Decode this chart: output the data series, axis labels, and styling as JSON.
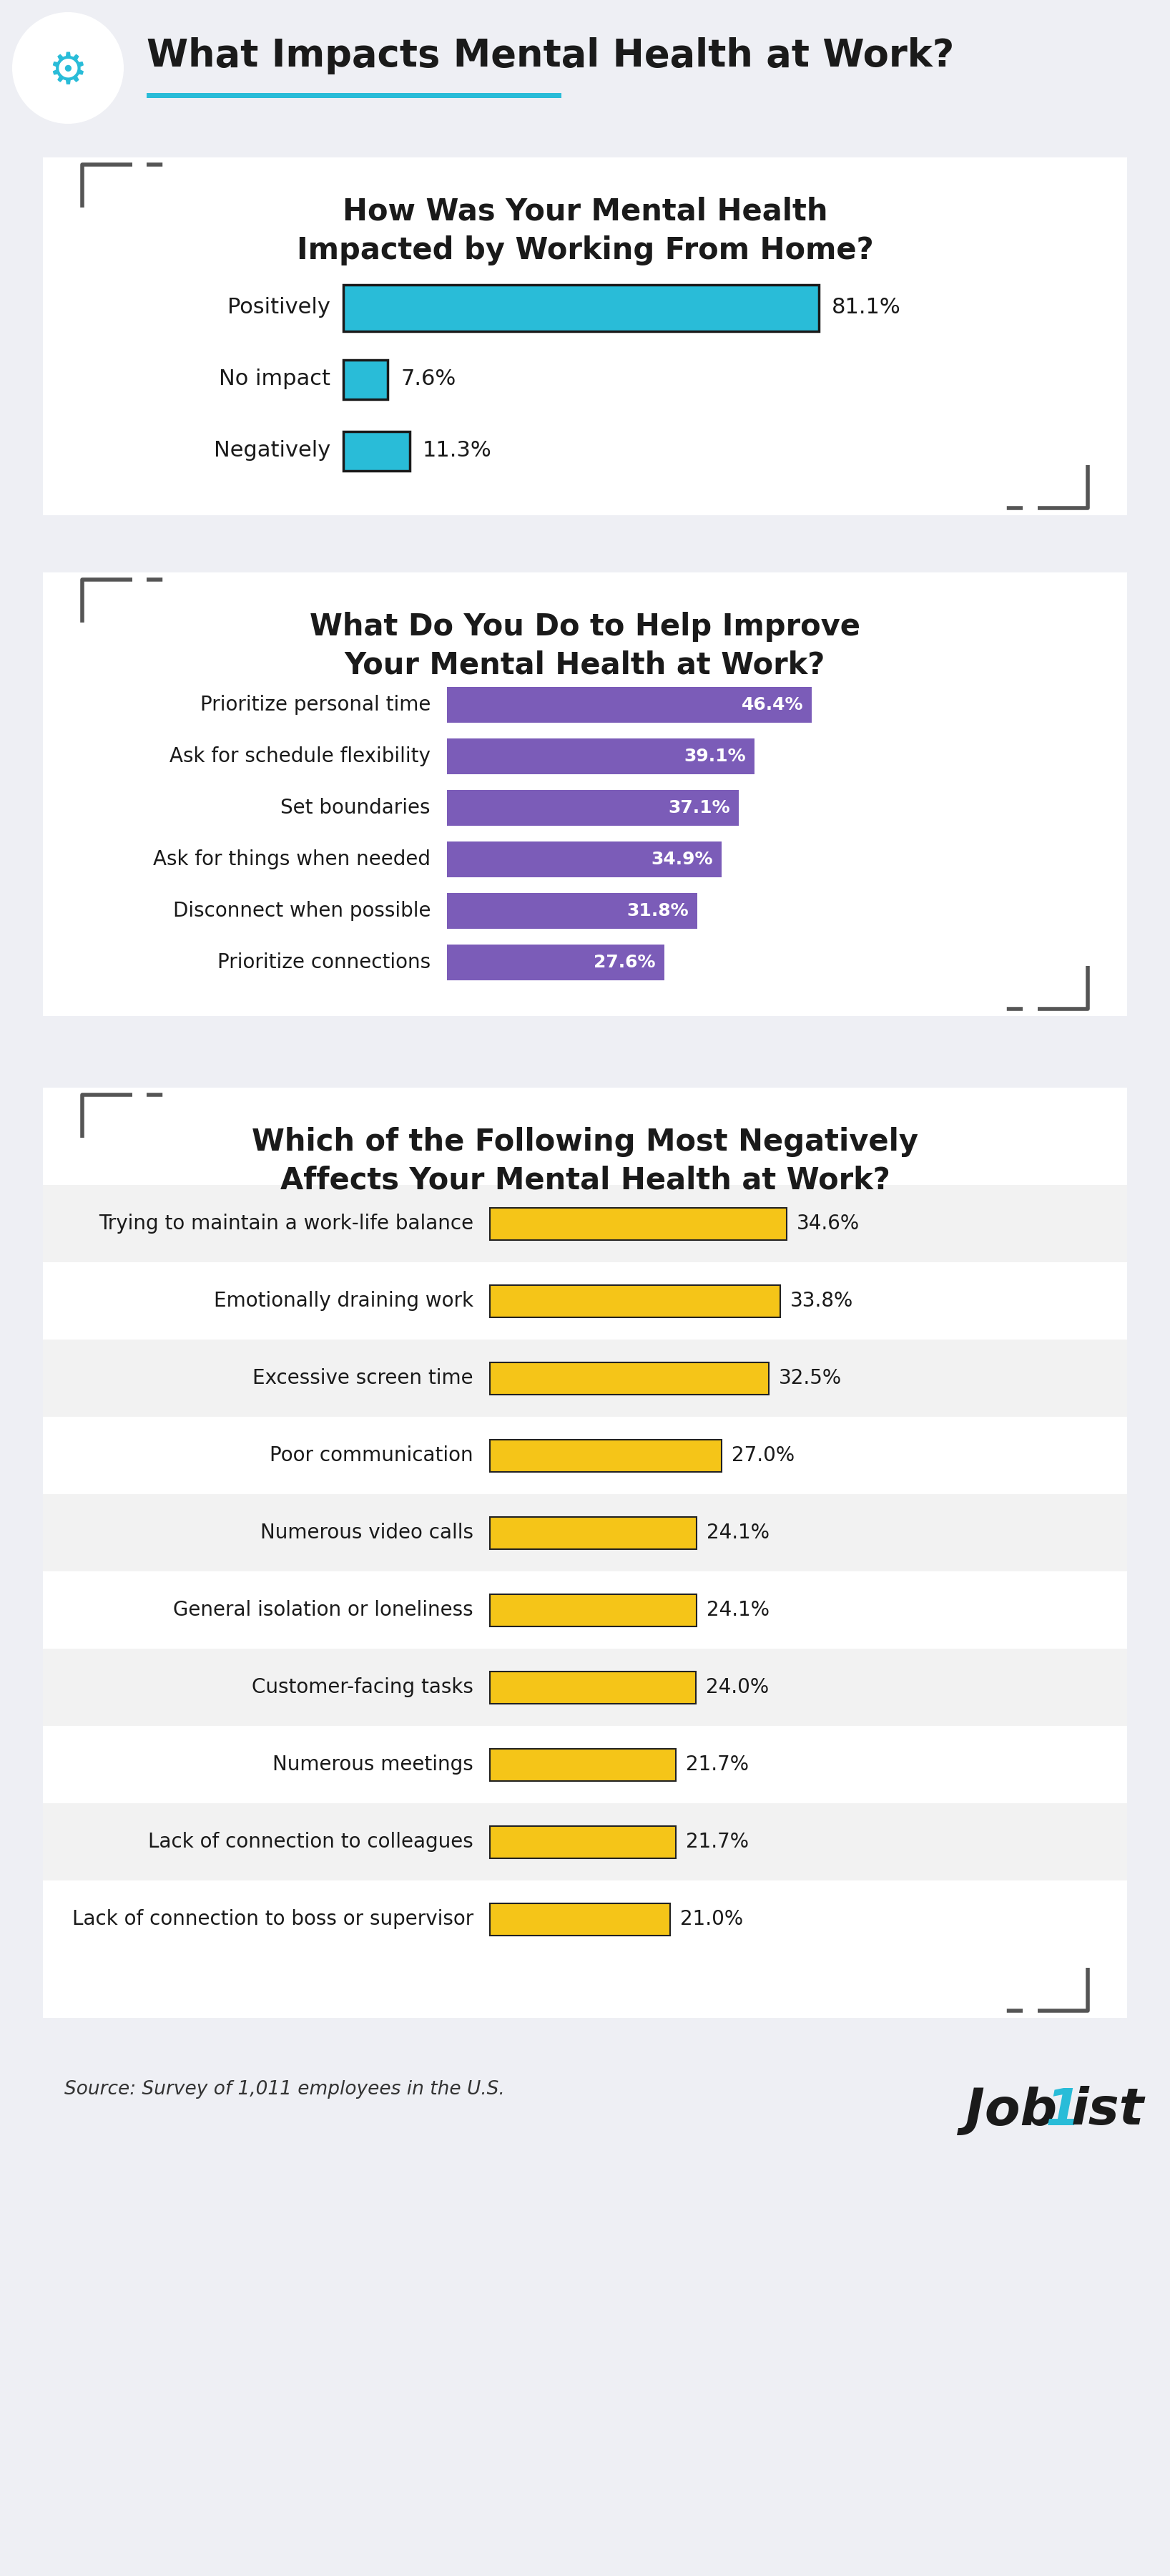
{
  "main_title": "What Impacts Mental Health at Work?",
  "bg_color": "#eeeff4",
  "white_bg": "#ffffff",
  "section1": {
    "title": "How Was Your Mental Health\nImpacted by Working From Home?",
    "categories": [
      "Positively",
      "No impact",
      "Negatively"
    ],
    "values": [
      81.1,
      7.6,
      11.3
    ],
    "bar_color": "#29bcd8",
    "bar_edge_color": "#222222"
  },
  "section2": {
    "title": "What Do You Do to Help Improve\nYour Mental Health at Work?",
    "categories": [
      "Prioritize personal time",
      "Ask for schedule flexibility",
      "Set boundaries",
      "Ask for things when needed",
      "Disconnect when possible",
      "Prioritize connections"
    ],
    "values": [
      46.4,
      39.1,
      37.1,
      34.9,
      31.8,
      27.6
    ],
    "bar_color": "#7b5cb8",
    "text_color": "#ffffff"
  },
  "section3": {
    "title": "Which of the Following Most Negatively\nAffects Your Mental Health at Work?",
    "categories": [
      "Trying to maintain a work-life balance",
      "Emotionally draining work",
      "Excessive screen time",
      "Poor communication",
      "Numerous video calls",
      "General isolation or loneliness",
      "Customer-facing tasks",
      "Numerous meetings",
      "Lack of connection to colleagues",
      "Lack of connection to boss or supervisor"
    ],
    "values": [
      34.6,
      33.8,
      32.5,
      27.0,
      24.1,
      24.1,
      24.0,
      21.7,
      21.7,
      21.0
    ],
    "bar_color": "#f5c518",
    "bar_edge_color": "#222222",
    "row_bg_odd": "#f2f2f2",
    "row_bg_even": "#ffffff"
  },
  "source_text": "Source: Survey of 1,011 employees in the U.S.",
  "accent_color": "#29bcd8",
  "bracket_color": "#555555"
}
